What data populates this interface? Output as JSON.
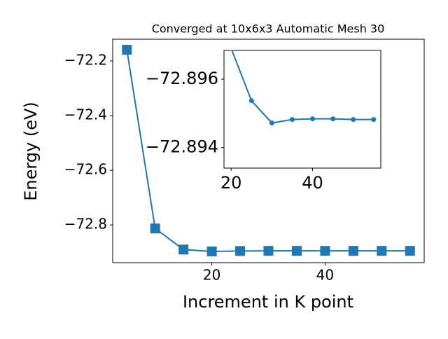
{
  "chart_data": {
    "type": "line",
    "title": "Converged at 10x6x3 Automatic Mesh 30",
    "x_label": "Increment in K point",
    "y_label": "Energy (eV)",
    "x": [
      5,
      10,
      15,
      20,
      25,
      30,
      35,
      40,
      45,
      50,
      55
    ],
    "color": "#1f77b4",
    "values": [
      -72.159,
      -72.813,
      -72.89,
      -72.8969,
      -72.89537,
      -72.89472,
      -72.89482,
      -72.89484,
      -72.89484,
      -72.89482,
      -72.89482
    ],
    "xlim": [
      2.5,
      57.5
    ],
    "ylim": [
      -72.938,
      -72.1205
    ],
    "xticks": [
      20,
      40
    ],
    "yticks": [
      {
        "value": -72.8,
        "label": "−72.8"
      },
      {
        "value": -72.6,
        "label": "−72.6"
      },
      {
        "value": -72.4,
        "label": "−72.4"
      },
      {
        "value": -72.2,
        "label": "−72.2"
      }
    ],
    "inset": {
      "xlim": [
        18.25,
        56.75
      ],
      "ylim": [
        -72.8934,
        -72.89684
      ],
      "xticks": [
        20,
        40
      ],
      "yticks": [
        {
          "value": -72.896,
          "label": "−72.896"
        },
        {
          "value": -72.894,
          "label": "−72.894"
        }
      ]
    }
  }
}
